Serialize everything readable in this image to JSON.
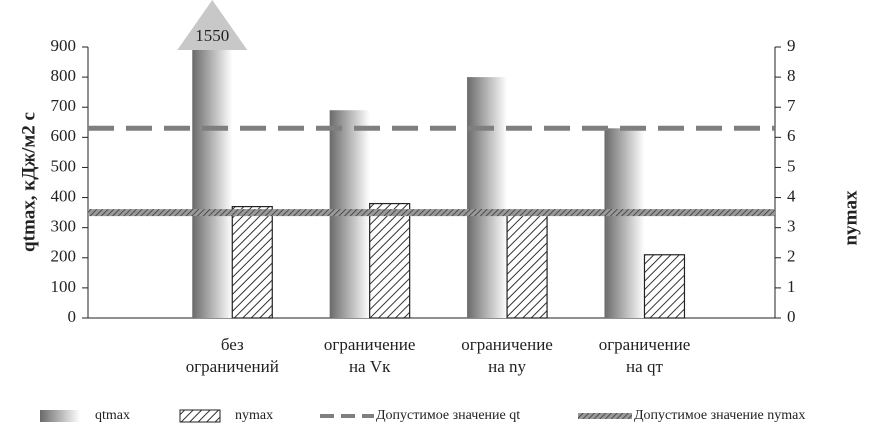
{
  "chart_data": {
    "type": "bar",
    "y_label": "qtmax, кДж/м2 с",
    "y2_label": "nymax",
    "categories": [
      "без ограничений",
      "ограничение на Vк",
      "ограничение на ny",
      "ограничение на qт"
    ],
    "series": [
      {
        "name": "qtmax",
        "color": "#808080",
        "values": [
          1550,
          690,
          800,
          630
        ],
        "value_labels": [
          "1550",
          null,
          null,
          null
        ]
      },
      {
        "name": "nymax",
        "color": "#333333",
        "values": [
          3.7,
          3.8,
          3.5,
          2.1
        ],
        "axis": "y2"
      }
    ],
    "lines": [
      {
        "name": "Допустимое значение qt",
        "value": 630,
        "color": "#7f7f7f"
      },
      {
        "name": "Допустимое значение nymax",
        "value": 3.5,
        "axis": "y2",
        "color": "#555555"
      }
    ],
    "ylim": [
      0,
      900
    ],
    "yticks": [
      0,
      100,
      200,
      300,
      400,
      500,
      600,
      700,
      800,
      900
    ],
    "y2lim": [
      0,
      9
    ],
    "y2ticks": [
      0,
      1,
      2,
      3,
      4,
      5,
      6,
      7,
      8,
      9
    ]
  }
}
